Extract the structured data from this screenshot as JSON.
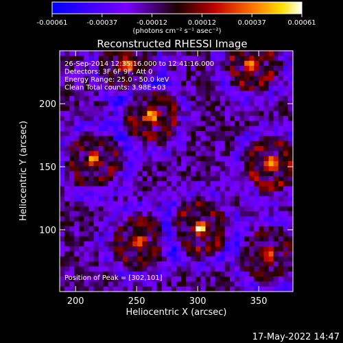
{
  "chart_data": {
    "type": "heatmap",
    "title": "Reconstructed RHESSI Image",
    "xlabel": "Heliocentric X (arcsec)",
    "ylabel": "Heliocentric Y (arcsec)",
    "xlim": [
      187,
      378
    ],
    "ylim": [
      51,
      242
    ],
    "x_ticks": [
      200,
      250,
      300,
      350
    ],
    "y_ticks": [
      100,
      150,
      200
    ],
    "colorbar": {
      "ticks": [
        "-0.00061",
        "-0.00037",
        "-0.00012",
        "0.00012",
        "0.00037",
        "0.00061"
      ],
      "units": "(photons cm⁻² s⁻¹ asec⁻²)",
      "range": [
        -0.00061,
        0.00061
      ]
    },
    "annotations": [
      "26-Sep-2014 12:35:16.000 to 12:41:16.000",
      "Detectors: 3F 6F 9F, Att 0",
      "Energy Range: 25.0 - 50.0 keV",
      "Clean    Total counts: 3.98E+03"
    ],
    "peak_label": "Position of Peak = [302,101]",
    "sources": [
      {
        "x": 242,
        "y": 232,
        "amp": 0.00055
      },
      {
        "x": 345,
        "y": 232,
        "amp": 0.00058
      },
      {
        "x": 262,
        "y": 190,
        "amp": 0.00061
      },
      {
        "x": 215,
        "y": 155,
        "amp": 0.0005
      },
      {
        "x": 360,
        "y": 152,
        "amp": 0.0006
      },
      {
        "x": 302,
        "y": 101,
        "amp": 0.00061
      },
      {
        "x": 252,
        "y": 90,
        "amp": 0.00045
      },
      {
        "x": 358,
        "y": 80,
        "amp": 0.00042
      }
    ]
  },
  "footer": {
    "date": "17-May-2022 14:47"
  }
}
